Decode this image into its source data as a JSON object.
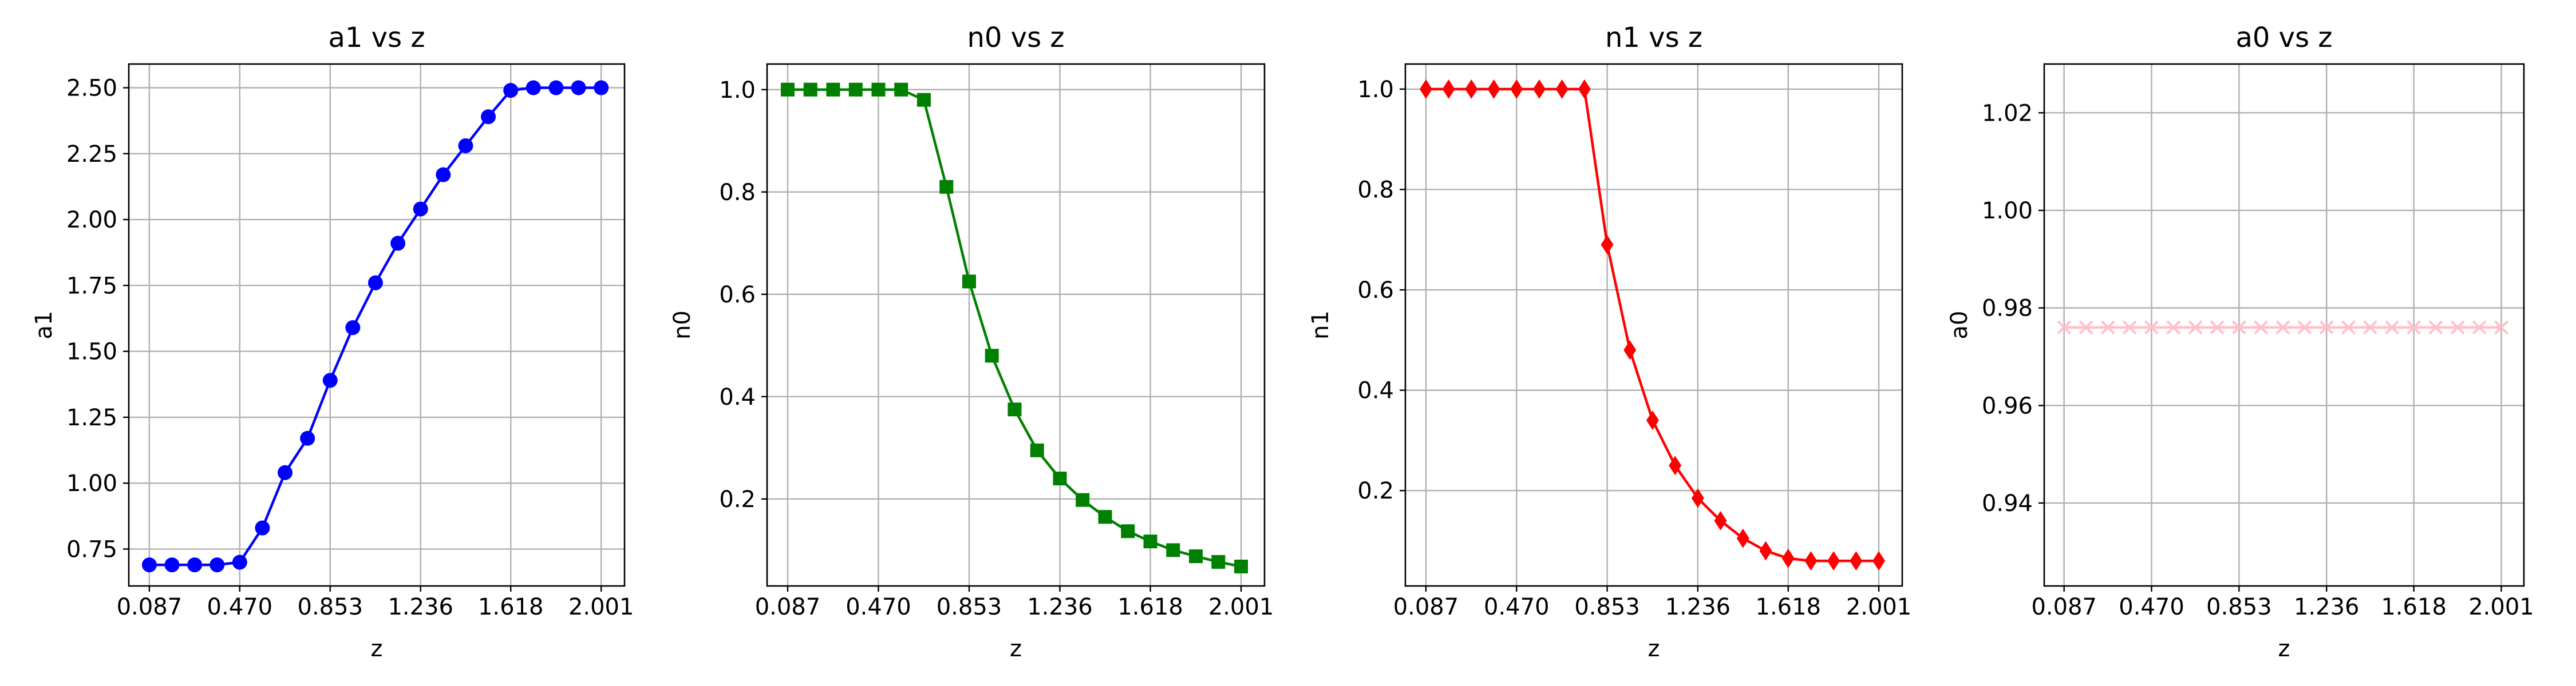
{
  "chart_data": [
    {
      "type": "line",
      "title": "a1 vs z",
      "xlabel": "z",
      "ylabel": "a1",
      "xlim": [
        0.0,
        2.1
      ],
      "ylim": [
        0.61,
        2.59
      ],
      "grid": true,
      "x_ticks": [
        0.087,
        0.47,
        0.853,
        1.236,
        1.618,
        2.001
      ],
      "x_tick_labels": [
        "0.087",
        "0.470",
        "0.853",
        "1.236",
        "1.618",
        "2.001"
      ],
      "y_ticks": [
        0.75,
        1.0,
        1.25,
        1.5,
        1.75,
        2.0,
        2.25,
        2.5
      ],
      "y_tick_labels": [
        "0.75",
        "1.00",
        "1.25",
        "1.50",
        "1.75",
        "2.00",
        "2.25",
        "2.50"
      ],
      "series": [
        {
          "color": "#0000ff",
          "marker": "circle",
          "x": [
            0.087,
            0.183,
            0.279,
            0.374,
            0.47,
            0.566,
            0.662,
            0.757,
            0.853,
            0.949,
            1.045,
            1.14,
            1.236,
            1.332,
            1.427,
            1.523,
            1.618,
            1.714,
            1.81,
            1.905,
            2.001
          ],
          "y": [
            0.69,
            0.69,
            0.69,
            0.69,
            0.7,
            0.83,
            1.04,
            1.17,
            1.39,
            1.59,
            1.76,
            1.91,
            2.04,
            2.17,
            2.28,
            2.39,
            2.49,
            2.5,
            2.5,
            2.5,
            2.5
          ]
        }
      ]
    },
    {
      "type": "line",
      "title": "n0 vs z",
      "xlabel": "z",
      "ylabel": "n0",
      "xlim": [
        0.0,
        2.1
      ],
      "ylim": [
        0.03,
        1.05
      ],
      "grid": true,
      "x_ticks": [
        0.087,
        0.47,
        0.853,
        1.236,
        1.618,
        2.001
      ],
      "x_tick_labels": [
        "0.087",
        "0.470",
        "0.853",
        "1.236",
        "1.618",
        "2.001"
      ],
      "y_ticks": [
        0.2,
        0.4,
        0.6,
        0.8,
        1.0
      ],
      "y_tick_labels": [
        "0.2",
        "0.4",
        "0.6",
        "0.8",
        "1.0"
      ],
      "series": [
        {
          "color": "#008000",
          "marker": "square",
          "x": [
            0.087,
            0.183,
            0.279,
            0.374,
            0.47,
            0.566,
            0.662,
            0.757,
            0.853,
            0.949,
            1.045,
            1.14,
            1.236,
            1.332,
            1.427,
            1.523,
            1.618,
            1.714,
            1.81,
            1.905,
            2.001
          ],
          "y": [
            1.0,
            1.0,
            1.0,
            1.0,
            1.0,
            1.0,
            0.98,
            0.81,
            0.625,
            0.48,
            0.375,
            0.295,
            0.24,
            0.198,
            0.165,
            0.137,
            0.117,
            0.1,
            0.088,
            0.077,
            0.068
          ]
        }
      ]
    },
    {
      "type": "line",
      "title": "n1 vs z",
      "xlabel": "z",
      "ylabel": "n1",
      "xlim": [
        0.0,
        2.1
      ],
      "ylim": [
        0.01,
        1.05
      ],
      "grid": true,
      "x_ticks": [
        0.087,
        0.47,
        0.853,
        1.236,
        1.618,
        2.001
      ],
      "x_tick_labels": [
        "0.087",
        "0.470",
        "0.853",
        "1.236",
        "1.618",
        "2.001"
      ],
      "y_ticks": [
        0.2,
        0.4,
        0.6,
        0.8,
        1.0
      ],
      "y_tick_labels": [
        "0.2",
        "0.4",
        "0.6",
        "0.8",
        "1.0"
      ],
      "series": [
        {
          "color": "#ff0000",
          "marker": "diamond",
          "x": [
            0.087,
            0.183,
            0.279,
            0.374,
            0.47,
            0.566,
            0.662,
            0.757,
            0.853,
            0.949,
            1.045,
            1.14,
            1.236,
            1.332,
            1.427,
            1.523,
            1.618,
            1.714,
            1.81,
            1.905,
            2.001
          ],
          "y": [
            1.0,
            1.0,
            1.0,
            1.0,
            1.0,
            1.0,
            1.0,
            1.0,
            0.69,
            0.48,
            0.34,
            0.25,
            0.185,
            0.14,
            0.105,
            0.08,
            0.065,
            0.06,
            0.06,
            0.06,
            0.06
          ]
        }
      ]
    },
    {
      "type": "line",
      "title": "a0 vs z",
      "xlabel": "z",
      "ylabel": "a0",
      "xlim": [
        0.0,
        2.1
      ],
      "ylim": [
        0.923,
        1.03
      ],
      "grid": true,
      "x_ticks": [
        0.087,
        0.47,
        0.853,
        1.236,
        1.618,
        2.001
      ],
      "x_tick_labels": [
        "0.087",
        "0.470",
        "0.853",
        "1.236",
        "1.618",
        "2.001"
      ],
      "y_ticks": [
        0.94,
        0.96,
        0.98,
        1.0,
        1.02
      ],
      "y_tick_labels": [
        "0.94",
        "0.96",
        "0.98",
        "1.00",
        "1.02"
      ],
      "series": [
        {
          "color": "#ffc0cb",
          "marker": "x",
          "x": [
            0.087,
            0.183,
            0.279,
            0.374,
            0.47,
            0.566,
            0.662,
            0.757,
            0.853,
            0.949,
            1.045,
            1.14,
            1.236,
            1.332,
            1.427,
            1.523,
            1.618,
            1.714,
            1.81,
            1.905,
            2.001
          ],
          "y": [
            0.976,
            0.976,
            0.976,
            0.976,
            0.976,
            0.976,
            0.976,
            0.976,
            0.976,
            0.976,
            0.976,
            0.976,
            0.976,
            0.976,
            0.976,
            0.976,
            0.976,
            0.976,
            0.976,
            0.976,
            0.976
          ]
        }
      ]
    }
  ]
}
